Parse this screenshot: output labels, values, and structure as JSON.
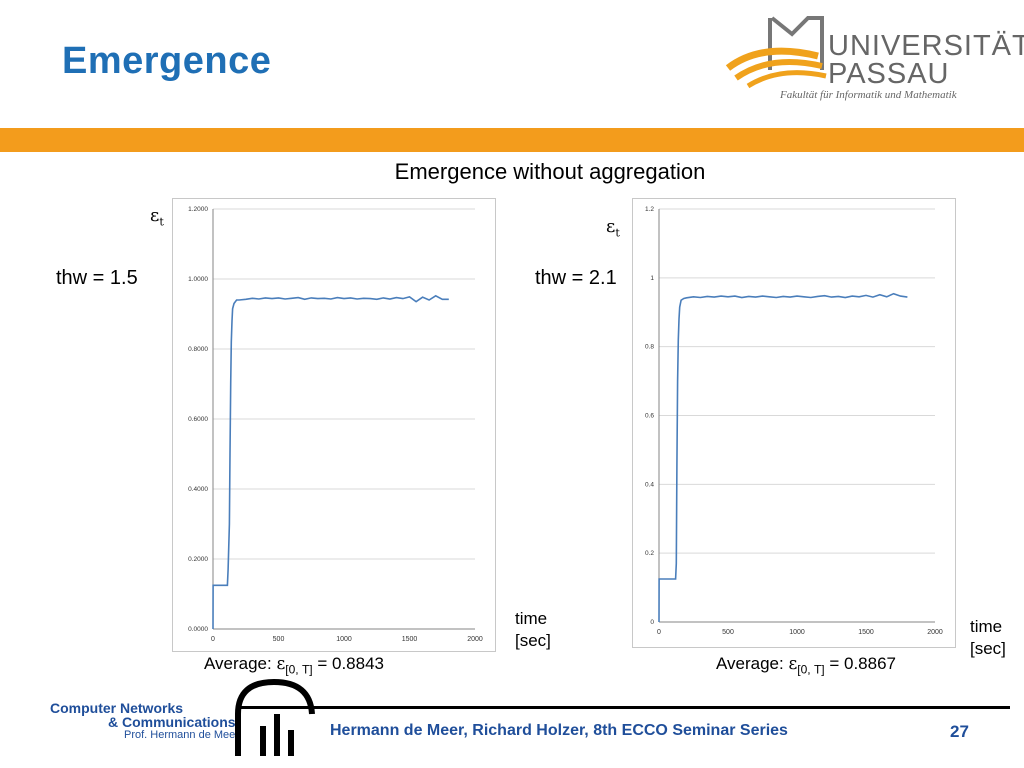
{
  "slide": {
    "title": "Emergence",
    "subtitle": "Emergence without aggregation",
    "footer": "Hermann de Meer, Richard Holzer, 8th ECCO Seminar Series",
    "page_number": "27"
  },
  "logos": {
    "university": {
      "line1": "UNIVERSITÄT",
      "line2": "PASSAU",
      "subtitle": "Fakultät für Informatik und Mathematik"
    },
    "group": {
      "line1": "Computer Networks",
      "line2": "& Communications",
      "line3": "Prof. Hermann de Meer"
    }
  },
  "colors": {
    "title": "#1f6fb5",
    "band": "#f39c1c",
    "series": "#4a7ebb",
    "footer_text": "#1f4e9a"
  },
  "panels": [
    {
      "thw_label": "thw = 1.5",
      "epsilon_symbol": "ε",
      "epsilon_sub": "t",
      "average_prefix": "Average: ",
      "average_symbol": "ε",
      "average_sub": "[0, T]",
      "average_value": " = 0.8843",
      "time_label_1": "time",
      "time_label_2": "[sec]"
    },
    {
      "thw_label": "thw = 2.1",
      "epsilon_symbol": "ε",
      "epsilon_sub": "t",
      "average_prefix": "Average: ",
      "average_symbol": "ε",
      "average_sub": "[0, T]",
      "average_value": " = 0.8867",
      "time_label_1": "time",
      "time_label_2": "[sec]"
    }
  ],
  "chart_data": [
    {
      "type": "line",
      "xlim": [
        0,
        2000
      ],
      "ylim": [
        0,
        1.2
      ],
      "x_ticks": [
        "0",
        "500",
        "1000",
        "1500",
        "2000"
      ],
      "y_ticks": [
        "0.0000",
        "0.2000",
        "0.4000",
        "0.6000",
        "0.8000",
        "1.0000",
        "1.2000"
      ],
      "grid": "horizontal",
      "series": [
        {
          "color": "#4a7ebb",
          "x": [
            0,
            1,
            110,
            115,
            125,
            130,
            135,
            140,
            145,
            150,
            160,
            180,
            200,
            250,
            300,
            350,
            400,
            450,
            500,
            550,
            600,
            650,
            700,
            750,
            800,
            850,
            900,
            950,
            1000,
            1050,
            1100,
            1150,
            1200,
            1250,
            1300,
            1350,
            1400,
            1450,
            1500,
            1550,
            1600,
            1650,
            1700,
            1750,
            1800
          ],
          "y": [
            0,
            0.125,
            0.125,
            0.17,
            0.3,
            0.5,
            0.7,
            0.82,
            0.88,
            0.915,
            0.93,
            0.94,
            0.94,
            0.942,
            0.945,
            0.943,
            0.946,
            0.944,
            0.946,
            0.943,
            0.945,
            0.947,
            0.942,
            0.946,
            0.944,
            0.945,
            0.943,
            0.947,
            0.944,
            0.946,
            0.943,
            0.945,
            0.944,
            0.942,
            0.946,
            0.943,
            0.947,
            0.944,
            0.949,
            0.935,
            0.948,
            0.94,
            0.952,
            0.942,
            0.942
          ]
        }
      ]
    },
    {
      "type": "line",
      "xlim": [
        0,
        2000
      ],
      "ylim": [
        0,
        1.2
      ],
      "x_ticks": [
        "0",
        "500",
        "1000",
        "1500",
        "2000"
      ],
      "y_ticks": [
        "0",
        "0.2",
        "0.4",
        "0.6",
        "0.8",
        "1",
        "1.2"
      ],
      "grid": "horizontal",
      "series": [
        {
          "color": "#4a7ebb",
          "x": [
            0,
            1,
            120,
            125,
            130,
            135,
            140,
            145,
            150,
            160,
            180,
            200,
            250,
            300,
            350,
            400,
            450,
            500,
            550,
            600,
            650,
            700,
            750,
            800,
            850,
            900,
            950,
            1000,
            1050,
            1100,
            1150,
            1200,
            1250,
            1300,
            1350,
            1400,
            1450,
            1500,
            1550,
            1600,
            1650,
            1700,
            1750,
            1800
          ],
          "y": [
            0,
            0.125,
            0.125,
            0.17,
            0.45,
            0.7,
            0.82,
            0.88,
            0.915,
            0.935,
            0.94,
            0.942,
            0.945,
            0.943,
            0.946,
            0.944,
            0.947,
            0.945,
            0.947,
            0.943,
            0.946,
            0.944,
            0.947,
            0.945,
            0.943,
            0.946,
            0.944,
            0.947,
            0.945,
            0.943,
            0.946,
            0.948,
            0.944,
            0.946,
            0.943,
            0.947,
            0.945,
            0.949,
            0.944,
            0.951,
            0.945,
            0.954,
            0.947,
            0.944
          ]
        }
      ]
    }
  ]
}
